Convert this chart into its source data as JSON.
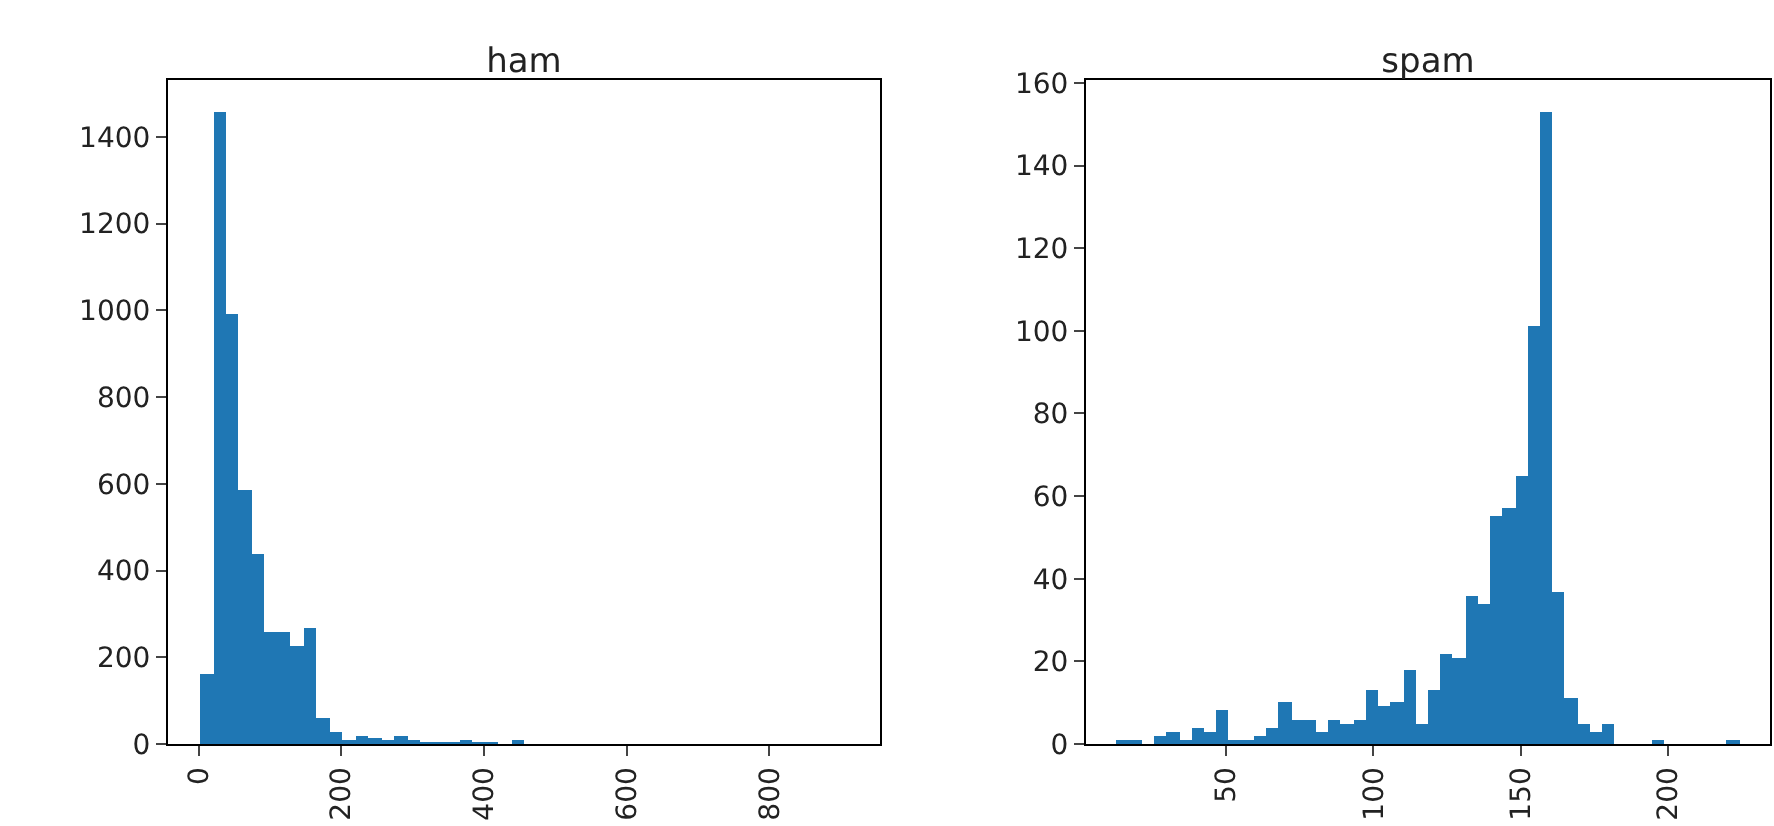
{
  "chart_data": [
    {
      "type": "histogram",
      "title": "ham",
      "color": "#1f77b4",
      "bins": [
        2,
        20.16,
        38.32,
        56.48,
        74.64,
        92.8,
        110.96,
        129.12,
        147.28,
        165.44,
        183.6,
        201.76,
        219.92,
        238.08,
        256.24,
        274.4,
        292.56,
        310.72,
        328.88,
        347.04,
        365.2,
        383.36,
        401.52,
        419.68,
        437.84,
        456,
        474.16,
        492.32,
        510.48,
        528.64,
        546.8,
        564.96,
        583.12,
        601.28,
        619.44,
        637.6,
        655.76,
        673.92,
        692.08,
        710.24,
        728.4,
        746.56,
        764.72,
        782.88,
        801.04,
        819.2,
        837.36,
        855.52,
        873.68,
        891.84,
        910
      ],
      "values": [
        161,
        1458,
        990,
        586,
        436,
        256,
        256,
        225,
        268,
        61,
        26,
        11,
        20,
        14,
        8,
        18,
        8,
        4,
        4,
        3,
        5,
        1,
        1,
        0,
        5,
        0,
        0,
        0,
        0,
        0,
        0,
        0,
        0,
        0,
        0,
        0,
        0,
        0,
        0,
        0,
        0,
        0,
        0,
        0,
        0,
        0,
        0,
        0,
        0,
        0
      ],
      "xlim": [
        -43,
        955
      ],
      "xticks": [
        0,
        200,
        400,
        600,
        800
      ],
      "ylim": [
        0,
        1531
      ],
      "yticks": [
        0,
        200,
        400,
        600,
        800,
        1000,
        1200,
        1400
      ],
      "grid": false
    },
    {
      "type": "histogram",
      "title": "spam",
      "color": "#1f77b4",
      "bins": [
        13,
        17.22,
        21.44,
        25.66,
        29.88,
        34.1,
        38.32,
        42.54,
        46.76,
        50.98,
        55.2,
        59.42,
        63.64,
        67.86,
        72.08,
        76.3,
        80.52,
        84.74,
        88.96,
        93.18,
        97.4,
        101.62,
        105.84,
        110.06,
        114.28,
        118.5,
        122.72,
        126.94,
        131.16,
        135.38,
        139.6,
        143.82,
        148.04,
        152.26,
        156.48,
        160.7,
        164.92,
        169.14,
        173.36,
        177.58,
        181.8,
        186.02,
        190.24,
        194.46,
        198.68,
        202.9,
        207.12,
        211.34,
        215.56,
        219.78,
        224
      ],
      "values": [
        1,
        1,
        0,
        2,
        3,
        1,
        4,
        3,
        8,
        1,
        1,
        2,
        4,
        10,
        6,
        6,
        3,
        6,
        5,
        6,
        13,
        9,
        10,
        18,
        5,
        13,
        22,
        21,
        36,
        34,
        55,
        57,
        65,
        101,
        153,
        37,
        11,
        5,
        3,
        5,
        0,
        0,
        0,
        1,
        0,
        0,
        0,
        0,
        0,
        1
      ],
      "xlim": [
        2.5,
        234.5
      ],
      "xticks": [
        50,
        100,
        150,
        200
      ],
      "ylim": [
        0,
        160.7
      ],
      "yticks": [
        0,
        20,
        40,
        60,
        80,
        100,
        120,
        140,
        160
      ],
      "grid": false
    }
  ]
}
